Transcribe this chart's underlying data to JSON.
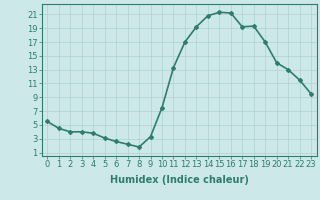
{
  "x": [
    0,
    1,
    2,
    3,
    4,
    5,
    6,
    7,
    8,
    9,
    10,
    11,
    12,
    13,
    14,
    15,
    16,
    17,
    18,
    19,
    20,
    21,
    22,
    23
  ],
  "y": [
    5.5,
    4.5,
    4.0,
    4.0,
    3.8,
    3.1,
    2.6,
    2.2,
    1.8,
    3.3,
    7.5,
    13.3,
    17.0,
    19.2,
    20.8,
    21.3,
    21.2,
    19.2,
    19.3,
    17.0,
    14.0,
    13.0,
    11.5,
    9.5
  ],
  "yticks": [
    1,
    3,
    5,
    7,
    9,
    11,
    13,
    15,
    17,
    19,
    21
  ],
  "xticks": [
    0,
    1,
    2,
    3,
    4,
    5,
    6,
    7,
    8,
    9,
    10,
    11,
    12,
    13,
    14,
    15,
    16,
    17,
    18,
    19,
    20,
    21,
    22,
    23
  ],
  "ylim": [
    0.5,
    22.5
  ],
  "xlim": [
    -0.5,
    23.5
  ],
  "line_color": "#2e7d6e",
  "marker": "D",
  "marker_size": 2.0,
  "bg_color": "#cce8e8",
  "grid_color": "#b0d0d0",
  "xlabel": "Humidex (Indice chaleur)",
  "xlabel_fontsize": 7,
  "tick_fontsize": 6,
  "line_width": 1.2
}
